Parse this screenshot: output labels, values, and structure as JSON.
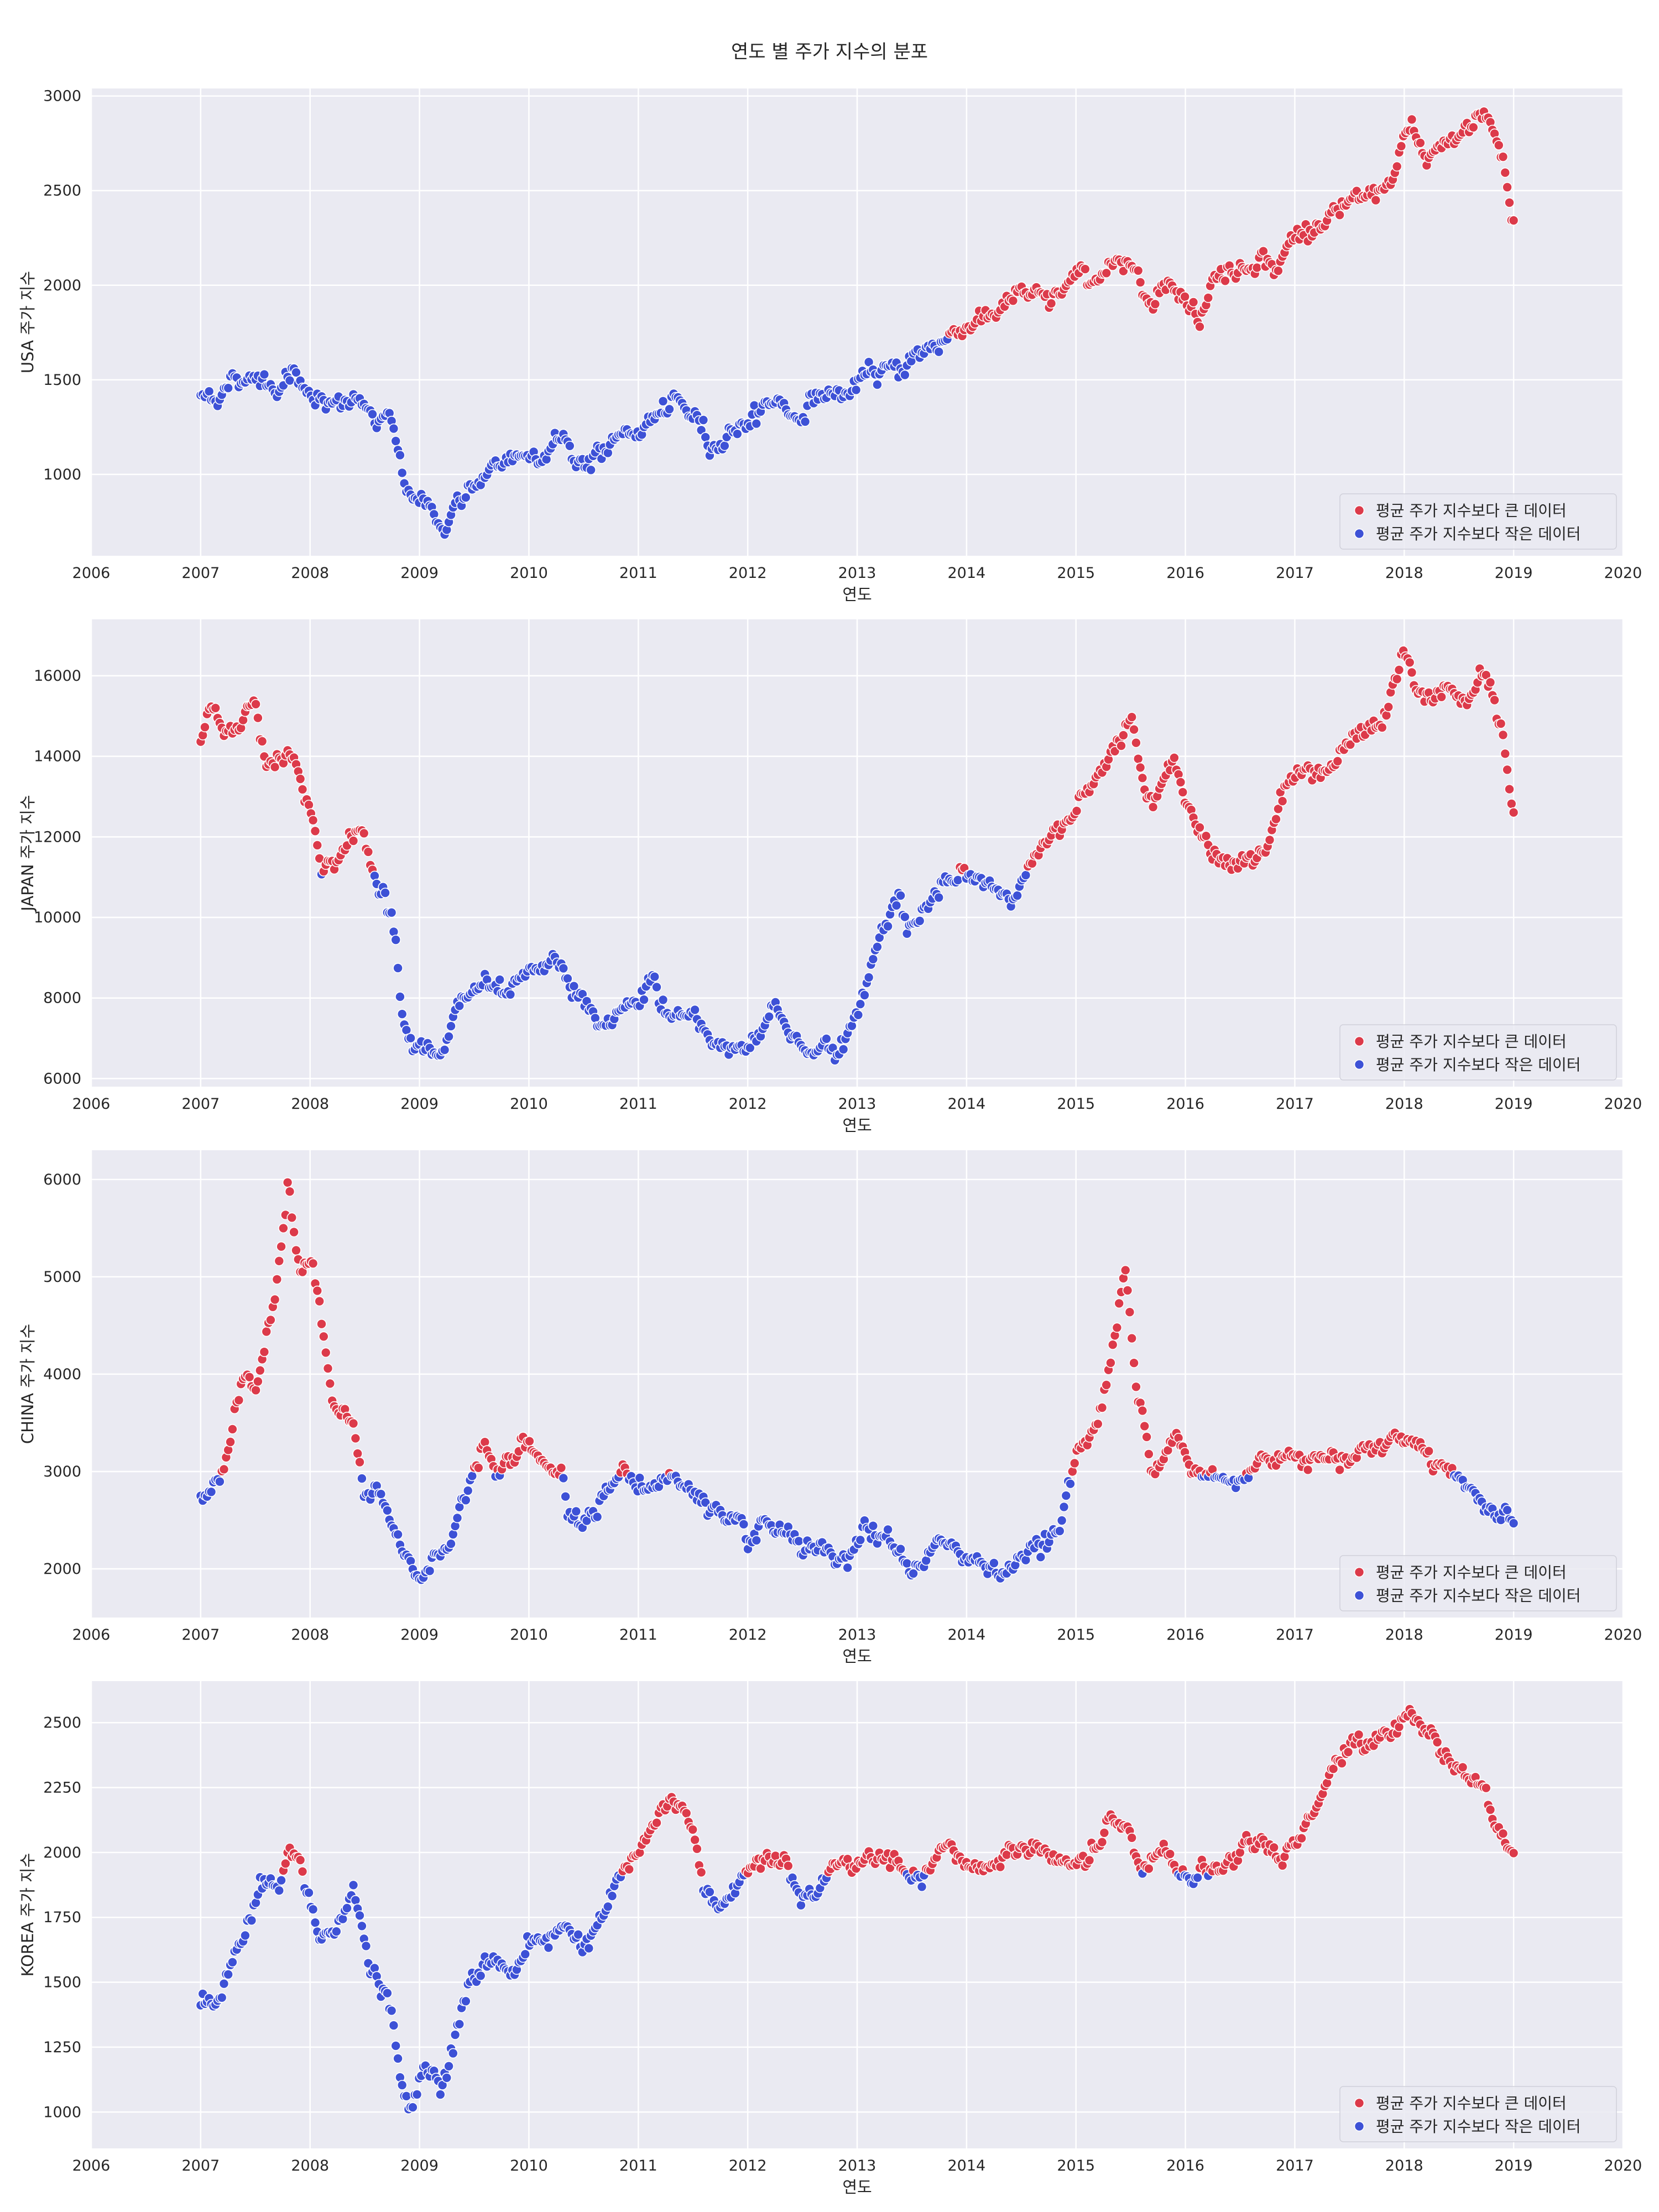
{
  "figure": {
    "title": "연도 별 주가 지수의 분포"
  },
  "colors": {
    "above": "#dc3a4a",
    "below": "#3d51d6",
    "plot_bg": "#eaeaf2",
    "grid": "#ffffff"
  },
  "legend": {
    "above": "평균 주가 지수보다 큰 데이터",
    "below": "평균 주가 지수보다 작은 데이터",
    "position": "lower-right"
  },
  "chart_data": [
    {
      "type": "scatter",
      "xlabel": "연도",
      "ylabel": "USA 주가 지수",
      "xlim": [
        2006,
        2020
      ],
      "ylim": [
        570,
        3040
      ],
      "xticks": [
        "2006",
        "2007",
        "2008",
        "2009",
        "2010",
        "2011",
        "2012",
        "2013",
        "2014",
        "2015",
        "2016",
        "2017",
        "2018",
        "2019",
        "2020"
      ],
      "yticks": [
        "1000",
        "1500",
        "2000",
        "2500",
        "3000"
      ],
      "threshold": 1715,
      "anchors": [
        [
          2007.0,
          1410
        ],
        [
          2007.2,
          1450
        ],
        [
          2007.45,
          1530
        ],
        [
          2007.7,
          1480
        ],
        [
          2007.85,
          1540
        ],
        [
          2008.0,
          1460
        ],
        [
          2008.2,
          1330
        ],
        [
          2008.45,
          1400
        ],
        [
          2008.6,
          1270
        ],
        [
          2008.75,
          1250
        ],
        [
          2008.85,
          1000
        ],
        [
          2008.95,
          870
        ],
        [
          2009.1,
          880
        ],
        [
          2009.2,
          680
        ],
        [
          2009.35,
          850
        ],
        [
          2009.55,
          920
        ],
        [
          2009.75,
          1060
        ],
        [
          2010.0,
          1120
        ],
        [
          2010.3,
          1190
        ],
        [
          2010.45,
          1070
        ],
        [
          2010.6,
          1090
        ],
        [
          2010.9,
          1200
        ],
        [
          2011.1,
          1280
        ],
        [
          2011.3,
          1340
        ],
        [
          2011.55,
          1300
        ],
        [
          2011.65,
          1150
        ],
        [
          2011.8,
          1210
        ],
        [
          2012.0,
          1300
        ],
        [
          2012.25,
          1400
        ],
        [
          2012.45,
          1310
        ],
        [
          2012.7,
          1440
        ],
        [
          2012.9,
          1420
        ],
        [
          2013.0,
          1460
        ],
        [
          2013.35,
          1570
        ],
        [
          2013.5,
          1620
        ],
        [
          2013.75,
          1690
        ],
        [
          2014.0,
          1800
        ],
        [
          2014.25,
          1870
        ],
        [
          2014.5,
          1950
        ],
        [
          2014.6,
          1930
        ],
        [
          2014.75,
          1900
        ],
        [
          2014.9,
          2000
        ],
        [
          2015.1,
          2050
        ],
        [
          2015.4,
          2100
        ],
        [
          2015.6,
          2080
        ],
        [
          2015.7,
          1900
        ],
        [
          2015.85,
          2050
        ],
        [
          2016.05,
          1920
        ],
        [
          2016.12,
          1830
        ],
        [
          2016.25,
          2030
        ],
        [
          2016.5,
          2100
        ],
        [
          2016.7,
          2170
        ],
        [
          2016.85,
          2110
        ],
        [
          2017.0,
          2250
        ],
        [
          2017.3,
          2350
        ],
        [
          2017.6,
          2430
        ],
        [
          2017.9,
          2560
        ],
        [
          2018.05,
          2820
        ],
        [
          2018.2,
          2650
        ],
        [
          2018.4,
          2720
        ],
        [
          2018.7,
          2920
        ],
        [
          2018.8,
          2850
        ],
        [
          2018.9,
          2680
        ],
        [
          2018.98,
          2350
        ]
      ]
    },
    {
      "type": "scatter",
      "xlabel": "연도",
      "ylabel": "JAPAN 주가 지수",
      "xlim": [
        2006,
        2020
      ],
      "ylim": [
        5800,
        17400
      ],
      "xticks": [
        "2006",
        "2007",
        "2008",
        "2009",
        "2010",
        "2011",
        "2012",
        "2013",
        "2014",
        "2015",
        "2016",
        "2017",
        "2018",
        "2019",
        "2020"
      ],
      "yticks": [
        "6000",
        "8000",
        "10000",
        "12000",
        "14000",
        "16000"
      ],
      "threshold": 11100,
      "anchors": [
        [
          2007.0,
          14400
        ],
        [
          2007.1,
          15200
        ],
        [
          2007.2,
          14600
        ],
        [
          2007.5,
          15300
        ],
        [
          2007.6,
          13800
        ],
        [
          2007.8,
          14200
        ],
        [
          2008.0,
          12800
        ],
        [
          2008.1,
          11300
        ],
        [
          2008.3,
          11500
        ],
        [
          2008.45,
          12200
        ],
        [
          2008.6,
          11000
        ],
        [
          2008.75,
          10200
        ],
        [
          2008.85,
          7500
        ],
        [
          2009.0,
          7000
        ],
        [
          2009.2,
          6400
        ],
        [
          2009.4,
          8000
        ],
        [
          2009.6,
          8300
        ],
        [
          2009.8,
          7800
        ],
        [
          2010.0,
          8500
        ],
        [
          2010.3,
          8800
        ],
        [
          2010.5,
          7700
        ],
        [
          2010.7,
          7300
        ],
        [
          2010.95,
          7800
        ],
        [
          2011.15,
          8500
        ],
        [
          2011.2,
          7600
        ],
        [
          2011.5,
          7500
        ],
        [
          2011.7,
          6900
        ],
        [
          2012.0,
          6800
        ],
        [
          2012.25,
          7700
        ],
        [
          2012.5,
          6800
        ],
        [
          2012.8,
          6800
        ],
        [
          2012.95,
          7000
        ],
        [
          2013.2,
          9500
        ],
        [
          2013.4,
          10800
        ],
        [
          2013.45,
          9700
        ],
        [
          2013.7,
          10500
        ],
        [
          2014.0,
          11000
        ],
        [
          2014.2,
          10800
        ],
        [
          2014.4,
          10500
        ],
        [
          2014.6,
          11500
        ],
        [
          2014.85,
          12000
        ],
        [
          2015.0,
          12700
        ],
        [
          2015.3,
          14200
        ],
        [
          2015.5,
          15000
        ],
        [
          2015.65,
          13000
        ],
        [
          2015.9,
          14200
        ],
        [
          2016.1,
          12000
        ],
        [
          2016.4,
          11400
        ],
        [
          2016.5,
          11100
        ],
        [
          2016.75,
          11800
        ],
        [
          2016.9,
          13500
        ],
        [
          2017.2,
          13600
        ],
        [
          2017.5,
          14300
        ],
        [
          2017.8,
          14700
        ],
        [
          2018.0,
          16600
        ],
        [
          2018.1,
          15500
        ],
        [
          2018.35,
          15700
        ],
        [
          2018.6,
          15300
        ],
        [
          2018.75,
          16000
        ],
        [
          2018.9,
          14500
        ],
        [
          2019.0,
          12500
        ]
      ]
    },
    {
      "type": "scatter",
      "xlabel": "연도",
      "ylabel": "CHINA 주가 지수",
      "xlim": [
        2006,
        2020
      ],
      "ylim": [
        1500,
        6300
      ],
      "xticks": [
        "2006",
        "2007",
        "2008",
        "2009",
        "2010",
        "2011",
        "2012",
        "2013",
        "2014",
        "2015",
        "2016",
        "2017",
        "2018",
        "2019",
        "2020"
      ],
      "yticks": [
        "2000",
        "3000",
        "4000",
        "5000",
        "6000"
      ],
      "threshold": 2960,
      "anchors": [
        [
          2007.0,
          2700
        ],
        [
          2007.1,
          2850
        ],
        [
          2007.2,
          3000
        ],
        [
          2007.3,
          3500
        ],
        [
          2007.4,
          4000
        ],
        [
          2007.5,
          3800
        ],
        [
          2007.65,
          4700
        ],
        [
          2007.8,
          6000
        ],
        [
          2007.9,
          5100
        ],
        [
          2008.0,
          5200
        ],
        [
          2008.1,
          4600
        ],
        [
          2008.2,
          3700
        ],
        [
          2008.3,
          3500
        ],
        [
          2008.4,
          3400
        ],
        [
          2008.5,
          2800
        ],
        [
          2008.65,
          2700
        ],
        [
          2008.85,
          2100
        ],
        [
          2009.0,
          1900
        ],
        [
          2009.2,
          2200
        ],
        [
          2009.45,
          2800
        ],
        [
          2009.6,
          3300
        ],
        [
          2009.7,
          2900
        ],
        [
          2009.9,
          3250
        ],
        [
          2010.1,
          3100
        ],
        [
          2010.3,
          3050
        ],
        [
          2010.35,
          2600
        ],
        [
          2010.6,
          2600
        ],
        [
          2010.8,
          2950
        ],
        [
          2011.0,
          2850
        ],
        [
          2011.3,
          2950
        ],
        [
          2011.55,
          2750
        ],
        [
          2011.8,
          2450
        ],
        [
          2012.0,
          2250
        ],
        [
          2012.2,
          2400
        ],
        [
          2012.5,
          2200
        ],
        [
          2012.75,
          2050
        ],
        [
          2012.95,
          2100
        ],
        [
          2013.1,
          2400
        ],
        [
          2013.3,
          2250
        ],
        [
          2013.5,
          2000
        ],
        [
          2013.7,
          2200
        ],
        [
          2013.95,
          2150
        ],
        [
          2014.2,
          2050
        ],
        [
          2014.45,
          2050
        ],
        [
          2014.6,
          2200
        ],
        [
          2014.85,
          2400
        ],
        [
          2015.0,
          3200
        ],
        [
          2015.2,
          3500
        ],
        [
          2015.35,
          4300
        ],
        [
          2015.45,
          5100
        ],
        [
          2015.55,
          3800
        ],
        [
          2015.7,
          3100
        ],
        [
          2015.9,
          3500
        ],
        [
          2016.05,
          2950
        ],
        [
          2016.3,
          2900
        ],
        [
          2016.5,
          2900
        ],
        [
          2016.7,
          3100
        ],
        [
          2016.9,
          3200
        ],
        [
          2017.2,
          3200
        ],
        [
          2017.5,
          3150
        ],
        [
          2017.8,
          3300
        ],
        [
          2018.0,
          3450
        ],
        [
          2018.2,
          3150
        ],
        [
          2018.45,
          3050
        ],
        [
          2018.6,
          2800
        ],
        [
          2018.8,
          2650
        ],
        [
          2019.0,
          2500
        ]
      ]
    },
    {
      "type": "scatter",
      "xlabel": "연도",
      "ylabel": "KOREA 주가 지수",
      "xlim": [
        2006,
        2020
      ],
      "ylim": [
        860,
        2660
      ],
      "xticks": [
        "2006",
        "2007",
        "2008",
        "2009",
        "2010",
        "2011",
        "2012",
        "2013",
        "2014",
        "2015",
        "2016",
        "2017",
        "2018",
        "2019",
        "2020"
      ],
      "yticks": [
        "1000",
        "1250",
        "1500",
        "1750",
        "2000",
        "2250",
        "2500"
      ],
      "threshold": 1920,
      "anchors": [
        [
          2007.0,
          1400
        ],
        [
          2007.1,
          1400
        ],
        [
          2007.2,
          1450
        ],
        [
          2007.4,
          1700
        ],
        [
          2007.55,
          1900
        ],
        [
          2007.7,
          1850
        ],
        [
          2007.8,
          2000
        ],
        [
          2007.9,
          1950
        ],
        [
          2008.0,
          1800
        ],
        [
          2008.1,
          1650
        ],
        [
          2008.25,
          1700
        ],
        [
          2008.4,
          1850
        ],
        [
          2008.55,
          1550
        ],
        [
          2008.7,
          1450
        ],
        [
          2008.8,
          1200
        ],
        [
          2008.9,
          1000
        ],
        [
          2009.05,
          1150
        ],
        [
          2009.2,
          1100
        ],
        [
          2009.4,
          1400
        ],
        [
          2009.6,
          1600
        ],
        [
          2009.8,
          1550
        ],
        [
          2010.0,
          1650
        ],
        [
          2010.3,
          1700
        ],
        [
          2010.5,
          1650
        ],
        [
          2010.7,
          1800
        ],
        [
          2010.9,
          1950
        ],
        [
          2011.1,
          2050
        ],
        [
          2011.3,
          2200
        ],
        [
          2011.5,
          2100
        ],
        [
          2011.6,
          1850
        ],
        [
          2011.75,
          1750
        ],
        [
          2011.9,
          1850
        ],
        [
          2012.0,
          1900
        ],
        [
          2012.2,
          2000
        ],
        [
          2012.35,
          2000
        ],
        [
          2012.45,
          1850
        ],
        [
          2012.6,
          1800
        ],
        [
          2012.8,
          1950
        ],
        [
          2013.0,
          1950
        ],
        [
          2013.2,
          2000
        ],
        [
          2013.4,
          1900
        ],
        [
          2013.6,
          1850
        ],
        [
          2013.8,
          2000
        ],
        [
          2014.0,
          1950
        ],
        [
          2014.25,
          1950
        ],
        [
          2014.45,
          2000
        ],
        [
          2014.65,
          2050
        ],
        [
          2014.85,
          1950
        ],
        [
          2015.1,
          1950
        ],
        [
          2015.3,
          2100
        ],
        [
          2015.5,
          2050
        ],
        [
          2015.6,
          1900
        ],
        [
          2015.8,
          2000
        ],
        [
          2016.05,
          1900
        ],
        [
          2016.2,
          1950
        ],
        [
          2016.4,
          1950
        ],
        [
          2016.7,
          2050
        ],
        [
          2016.9,
          1980
        ],
        [
          2017.1,
          2100
        ],
        [
          2017.4,
          2350
        ],
        [
          2017.7,
          2450
        ],
        [
          2017.9,
          2500
        ],
        [
          2018.05,
          2550
        ],
        [
          2018.2,
          2450
        ],
        [
          2018.4,
          2400
        ],
        [
          2018.55,
          2300
        ],
        [
          2018.75,
          2250
        ],
        [
          2018.85,
          2050
        ],
        [
          2019.0,
          2050
        ]
      ]
    }
  ]
}
